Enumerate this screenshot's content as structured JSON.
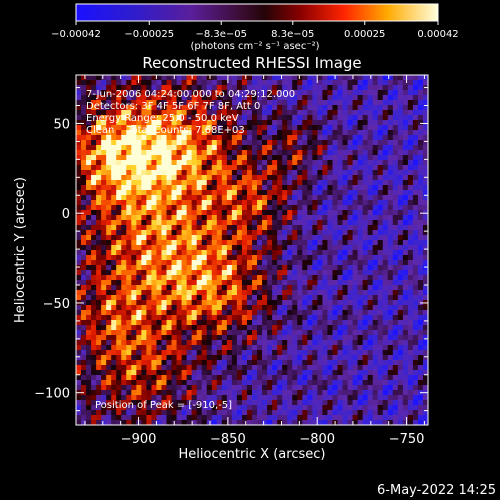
{
  "chart_data": {
    "type": "heatmap",
    "title": "Reconstructed RHESSI Image",
    "xlabel": "Heliocentric X (arcsec)",
    "ylabel": "Heliocentric Y (arcsec)",
    "xlim": [
      -935,
      -738
    ],
    "ylim": [
      -118,
      77
    ],
    "x_ticks": [
      -900,
      -850,
      -800,
      -750
    ],
    "x_tick_labels": [
      "−900",
      "−850",
      "−800",
      "−750"
    ],
    "y_ticks": [
      50,
      0,
      -50,
      -100
    ],
    "y_tick_labels": [
      "50",
      "0",
      "−50",
      "−100"
    ],
    "colorbar": {
      "range": [
        -0.00042,
        0.00042
      ],
      "ticks": [
        -0.00042,
        -0.00025,
        -8.3e-05,
        8.3e-05,
        0.00025,
        0.00042
      ],
      "tick_labels": [
        "−0.00042",
        "−0.00025",
        "−8.3e−05",
        "8.3e−05",
        "0.00025",
        "0.00042"
      ],
      "unit_label": "(photons cm⁻² s⁻¹ asec⁻²)"
    },
    "annotations": [
      "7-Jun-2006 04:24:00.000 to 04:29:12.000",
      "Detectors: 3F 4F 5F 6F 7F 8F, Att 0",
      "Energy Range: 25.0 - 50.0 keV",
      "Clean    Total Counts: 7.68E+03"
    ],
    "peak_label": "Position of Peak = [-910,-5]",
    "grid": false
  },
  "timestamp": "6-May-2022 14:25",
  "colors": {
    "background": "#000000",
    "axes": "#ffffff"
  }
}
